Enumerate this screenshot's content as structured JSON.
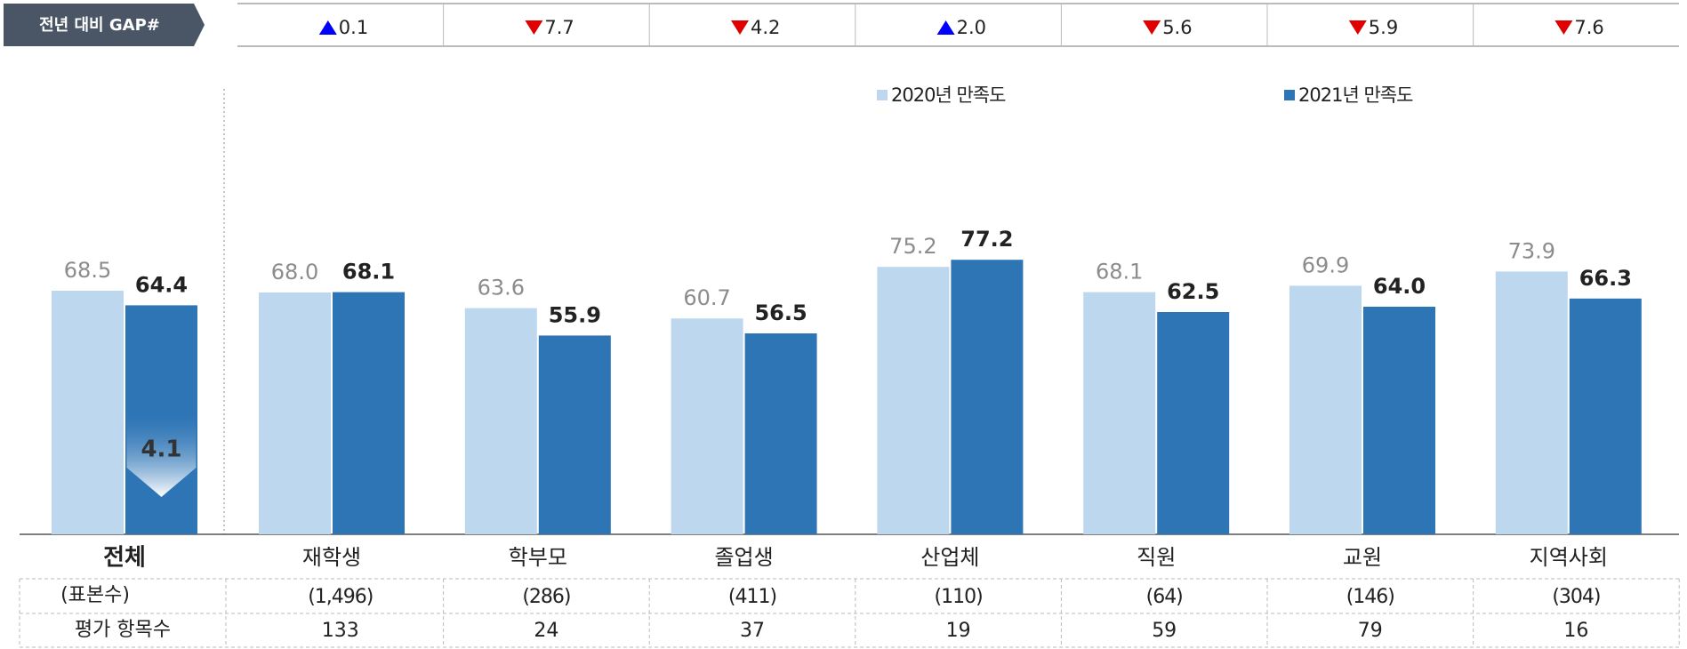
{
  "chart_data": {
    "type": "bar",
    "categories": [
      "전체",
      "재학생",
      "학부모",
      "졸업생",
      "산업체",
      "직원",
      "교원",
      "지역사회"
    ],
    "series": [
      {
        "name": "2020년 만족도",
        "color": "#bdd7ee",
        "values": [
          68.5,
          68.0,
          63.6,
          60.7,
          75.2,
          68.1,
          69.9,
          73.9
        ],
        "value_labels": [
          "68.5",
          "68.0",
          "63.6",
          "60.7",
          "75.2",
          "68.1",
          "69.9",
          "73.9"
        ]
      },
      {
        "name": "2021년 만족도",
        "color": "#2e75b6",
        "values": [
          64.4,
          68.1,
          55.9,
          56.5,
          77.2,
          62.5,
          64.0,
          66.3
        ],
        "value_labels": [
          "64.4",
          "68.1",
          "55.9",
          "56.5",
          "77.2",
          "62.5",
          "64.0",
          "66.3"
        ]
      }
    ],
    "ylim": [
      0,
      120
    ],
    "total_gap": 4.1,
    "gap": {
      "label": "전년 대비 GAP#",
      "values": [
        0.1,
        7.7,
        4.2,
        2.0,
        5.6,
        5.9,
        7.6
      ],
      "value_labels": [
        "0.1",
        "7.7",
        "4.2",
        "2.0",
        "5.6",
        "5.9",
        "7.6"
      ],
      "directions": [
        "up",
        "down",
        "down",
        "up",
        "down",
        "down",
        "down"
      ],
      "up_color": "#0000ff",
      "down_color": "#e00000"
    },
    "table": {
      "sample": {
        "label": "(표본수)",
        "values": [
          1496,
          286,
          411,
          110,
          64,
          146,
          304
        ],
        "value_labels": [
          "(1,496)",
          "(286)",
          "(411)",
          "(110)",
          "(64)",
          "(146)",
          "(304)"
        ]
      },
      "items": {
        "label": "평가 항목수",
        "values": [
          133,
          24,
          37,
          19,
          59,
          79,
          16
        ]
      }
    }
  }
}
